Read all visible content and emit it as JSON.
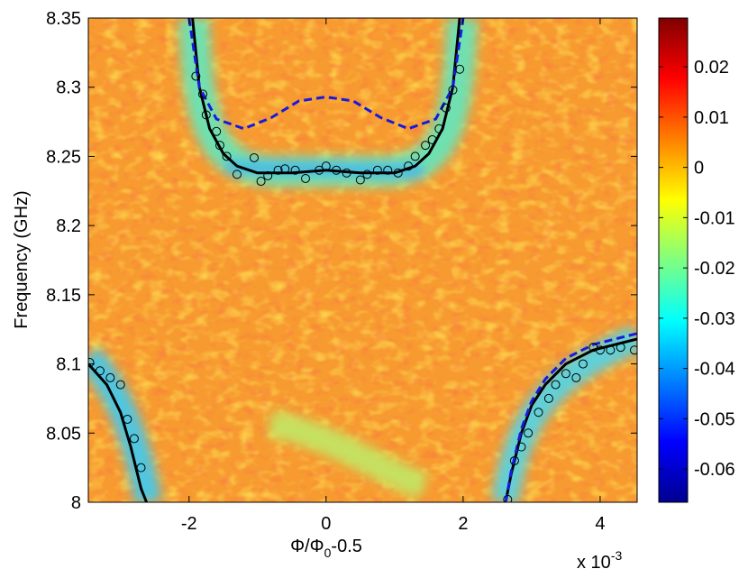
{
  "chart_data": {
    "type": "scatter",
    "ylabel": "Frequency (GHz)",
    "xlabel": [
      "Φ/Φ",
      "0",
      "-0.5"
    ],
    "x_multiplier": [
      "x 10",
      "-3"
    ],
    "xlim": [
      -3.47,
      4.54
    ],
    "xticks": [
      -2,
      0,
      2,
      4
    ],
    "ylim": [
      8,
      8.35
    ],
    "yticks": [
      8,
      8.05,
      8.1,
      8.15,
      8.2,
      8.25,
      8.3,
      8.35
    ],
    "clim": [
      -0.0666,
      0.0297
    ],
    "cticks": [
      0.02,
      0.01,
      0,
      -0.01,
      -0.02,
      -0.03,
      -0.04,
      -0.05,
      -0.06
    ],
    "colormap": "jet",
    "series": [
      {
        "mode": "markers",
        "color": "#000000",
        "x": [
          -1.9,
          -1.8,
          -1.75,
          -1.6,
          -1.55,
          -1.45,
          -1.3,
          -1.05,
          -0.95,
          -0.85,
          -0.7,
          -0.6,
          -0.45,
          -0.3,
          -0.1,
          0,
          0.15,
          0.3,
          0.5,
          0.6,
          0.75,
          0.9,
          1.05,
          1.2,
          1.3,
          1.45,
          1.55,
          1.65,
          1.75,
          1.85,
          1.95,
          -3.45,
          -3.3,
          -3.15,
          -3.0,
          -2.9,
          -2.8,
          -2.7,
          2.65,
          2.75,
          2.85,
          2.95,
          3.1,
          3.25,
          3.35,
          3.5,
          3.65,
          3.75,
          3.9,
          4.0,
          4.15,
          4.3,
          4.5
        ],
        "values": [
          8.308,
          8.295,
          8.28,
          8.268,
          8.258,
          8.25,
          8.237,
          8.249,
          8.232,
          8.236,
          8.24,
          8.241,
          8.24,
          8.234,
          8.24,
          8.243,
          8.24,
          8.238,
          8.233,
          8.237,
          8.24,
          8.24,
          8.238,
          8.243,
          8.25,
          8.258,
          8.262,
          8.27,
          8.285,
          8.298,
          8.313,
          8.101,
          8.095,
          8.09,
          8.085,
          8.06,
          8.046,
          8.025,
          8.002,
          8.03,
          8.04,
          8.05,
          8.065,
          8.075,
          8.085,
          8.093,
          8.09,
          8.1,
          8.112,
          8.11,
          8.11,
          8.112,
          8.11
        ]
      },
      {
        "mode": "line",
        "color": "#000000",
        "dash": false,
        "x": [
          -1.95,
          -1.85,
          -1.7,
          -1.5,
          -1.3,
          -1,
          -0.5,
          0,
          0.5,
          1,
          1.3,
          1.5,
          1.7,
          1.85,
          1.95,
          null,
          -3.47,
          -3.2,
          -3,
          -2.85,
          -2.7,
          -2.62,
          null,
          2.62,
          2.7,
          2.85,
          3,
          3.2,
          3.5,
          3.9,
          4.54
        ],
        "values": [
          8.35,
          8.3,
          8.27,
          8.252,
          8.243,
          8.238,
          8.238,
          8.24,
          8.238,
          8.238,
          8.243,
          8.252,
          8.27,
          8.3,
          8.35,
          null,
          8.1,
          8.085,
          8.065,
          8.04,
          8.01,
          8.0,
          null,
          8.0,
          8.02,
          8.05,
          8.07,
          8.085,
          8.1,
          8.11,
          8.118
        ]
      },
      {
        "mode": "line",
        "color": "#1a1adc",
        "dash": true,
        "x": [
          -2,
          -1.85,
          -1.6,
          -1.2,
          -0.8,
          -0.4,
          0,
          0.4,
          0.8,
          1.2,
          1.6,
          1.85,
          2,
          null,
          2.62,
          2.7,
          2.85,
          3,
          3.2,
          3.5,
          3.9,
          4.54
        ],
        "values": [
          8.35,
          8.3,
          8.277,
          8.27,
          8.278,
          8.29,
          8.293,
          8.29,
          8.278,
          8.27,
          8.277,
          8.3,
          8.35,
          null,
          8.0,
          8.022,
          8.053,
          8.073,
          8.089,
          8.104,
          8.114,
          8.122
        ]
      }
    ]
  }
}
